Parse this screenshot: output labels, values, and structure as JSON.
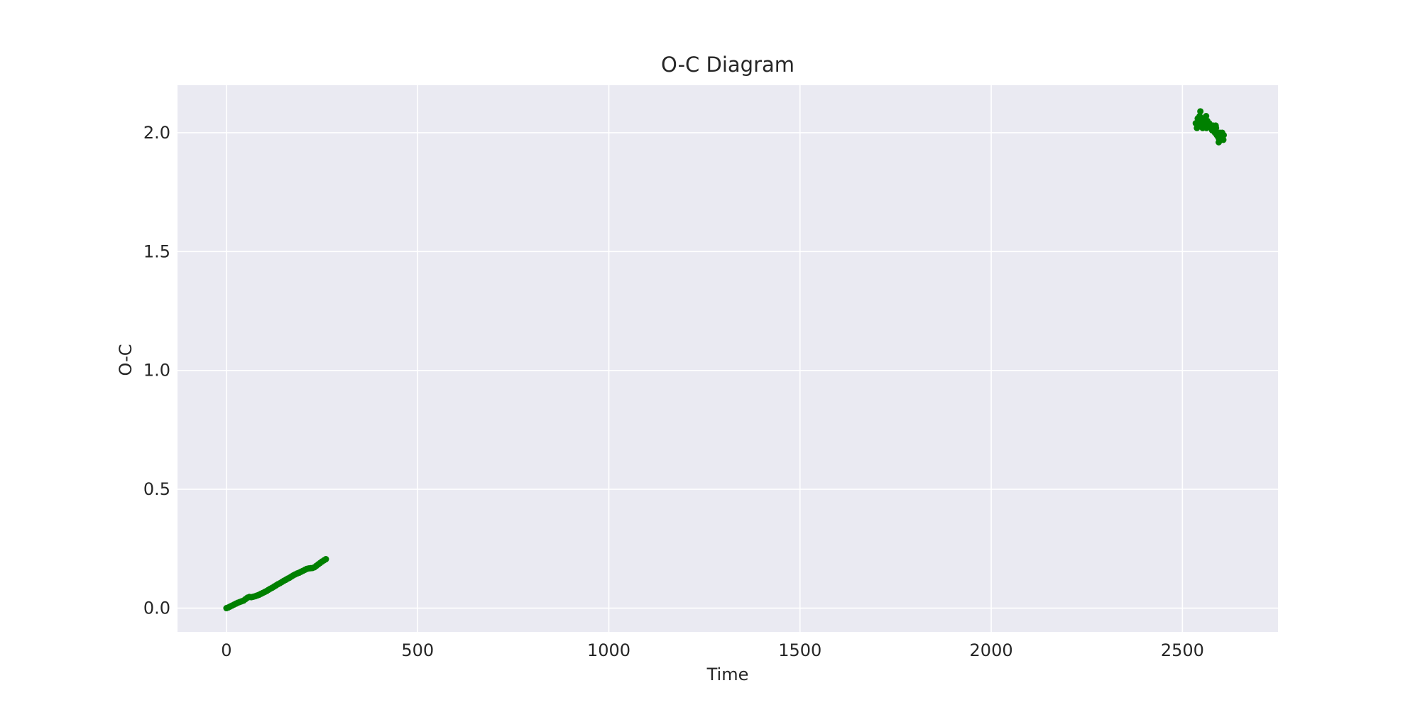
{
  "chart_data": {
    "type": "scatter",
    "title": "O-C Diagram",
    "xlabel": "Time",
    "ylabel": "O-C",
    "xlim": [
      -128,
      2750
    ],
    "ylim": [
      -0.1,
      2.2
    ],
    "xticks": [
      0,
      500,
      1000,
      1500,
      2000,
      2500
    ],
    "yticks": [
      0.0,
      0.5,
      1.0,
      1.5,
      2.0
    ],
    "xtick_labels": [
      "0",
      "500",
      "1000",
      "1500",
      "2000",
      "2500"
    ],
    "ytick_labels": [
      "0.0",
      "0.5",
      "1.0",
      "1.5",
      "2.0"
    ],
    "grid": true,
    "background_color": "#eaeaf2",
    "grid_color": "#ffffff",
    "marker_color": "#008000",
    "series": [
      {
        "x": [
          0,
          5,
          10,
          15,
          20,
          25,
          30,
          35,
          40,
          45,
          50,
          55,
          60,
          65,
          70,
          75,
          80,
          85,
          90,
          95,
          100,
          105,
          110,
          115,
          120,
          125,
          130,
          135,
          140,
          145,
          150,
          155,
          160,
          165,
          170,
          175,
          180,
          185,
          190,
          195,
          200,
          205,
          210,
          215,
          220,
          225,
          230,
          235,
          240,
          245,
          250,
          255,
          260
        ],
        "y": [
          0.0,
          0.003,
          0.007,
          0.011,
          0.015,
          0.019,
          0.023,
          0.026,
          0.029,
          0.032,
          0.038,
          0.044,
          0.047,
          0.046,
          0.048,
          0.05,
          0.053,
          0.056,
          0.06,
          0.064,
          0.068,
          0.072,
          0.077,
          0.082,
          0.086,
          0.091,
          0.096,
          0.101,
          0.105,
          0.11,
          0.115,
          0.119,
          0.124,
          0.128,
          0.133,
          0.138,
          0.142,
          0.146,
          0.149,
          0.153,
          0.157,
          0.161,
          0.165,
          0.167,
          0.168,
          0.169,
          0.172,
          0.178,
          0.184,
          0.19,
          0.196,
          0.201,
          0.206
        ]
      },
      {
        "x": [
          2535,
          2538,
          2540,
          2542,
          2545,
          2547,
          2548,
          2550,
          2552,
          2553,
          2555,
          2557,
          2558,
          2560,
          2562,
          2563,
          2565,
          2567,
          2570,
          2572,
          2575,
          2578,
          2580,
          2582,
          2585,
          2587,
          2588,
          2590,
          2592,
          2594,
          2595,
          2597,
          2598,
          2600,
          2601,
          2603,
          2604,
          2605,
          2607,
          2608
        ],
        "y": [
          2.04,
          2.02,
          2.06,
          2.05,
          2.07,
          2.09,
          2.03,
          2.05,
          2.04,
          2.02,
          2.06,
          2.03,
          2.05,
          2.04,
          2.07,
          2.02,
          2.05,
          2.03,
          2.04,
          2.03,
          2.02,
          2.01,
          2.03,
          2.02,
          2.0,
          2.03,
          2.02,
          1.99,
          2.0,
          1.98,
          1.96,
          1.97,
          2.0,
          1.99,
          1.97,
          1.98,
          2.0,
          1.99,
          1.97,
          1.99
        ]
      }
    ]
  }
}
